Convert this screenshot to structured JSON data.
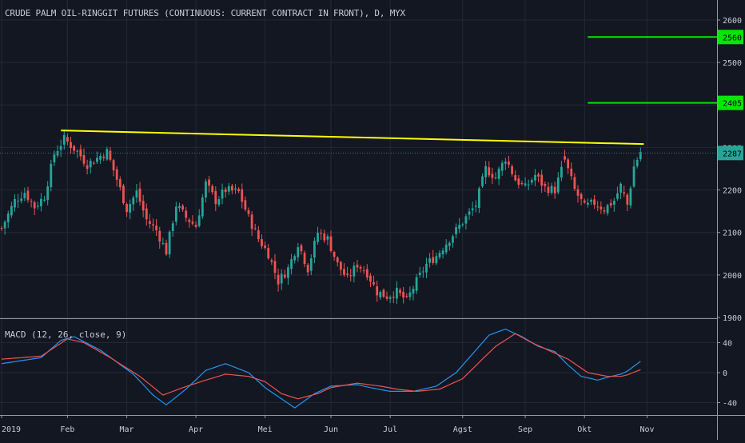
{
  "chart_data": [
    {
      "type": "candlestick",
      "title": "CRUDE PALM OIL-RINGGIT FUTURES (CONTINUOUS: CURRENT CONTRACT IN FRONT), D, MYX",
      "ylim": [
        1900,
        2600
      ],
      "y_ticks": [
        "1900",
        "2000",
        "2100",
        "2200",
        "2300",
        "2400",
        "2500",
        "2600"
      ],
      "x_ticks": [
        "2019",
        "Feb",
        "Mar",
        "Apr",
        "Mei",
        "Jun",
        "Jul",
        "Agst",
        "Sep",
        "Okt",
        "Nov"
      ],
      "x_tick_index": [
        0,
        20,
        38,
        59,
        80,
        100,
        118,
        140,
        159,
        177,
        196
      ],
      "price_labels": [
        {
          "value": 2560,
          "text": "2560",
          "color": "#00e600"
        },
        {
          "value": 2405,
          "text": "2405",
          "color": "#00e600"
        },
        {
          "value": 2287,
          "text": "2287",
          "color": "#26a69a"
        }
      ],
      "horizontal_lines": [
        {
          "value": 2560,
          "from_index": 178,
          "color": "#00e600"
        },
        {
          "value": 2405,
          "from_index": 178,
          "color": "#00e600"
        }
      ],
      "trend_line": {
        "from": {
          "index": 18,
          "value": 2340
        },
        "to": {
          "index": 195,
          "value": 2308
        },
        "color": "#ffff00"
      },
      "current_price_line": {
        "value": 2287
      },
      "up_color": "#26a69a",
      "down_color": "#ef5350",
      "close_anchors": [
        [
          0,
          2110
        ],
        [
          4,
          2175
        ],
        [
          7,
          2195
        ],
        [
          10,
          2160
        ],
        [
          13,
          2185
        ],
        [
          16,
          2285
        ],
        [
          19,
          2320
        ],
        [
          23,
          2290
        ],
        [
          26,
          2260
        ],
        [
          29,
          2275
        ],
        [
          32,
          2290
        ],
        [
          35,
          2225
        ],
        [
          38,
          2155
        ],
        [
          41,
          2195
        ],
        [
          44,
          2130
        ],
        [
          47,
          2105
        ],
        [
          50,
          2055
        ],
        [
          53,
          2165
        ],
        [
          56,
          2135
        ],
        [
          59,
          2115
        ],
        [
          62,
          2215
        ],
        [
          65,
          2175
        ],
        [
          68,
          2200
        ],
        [
          72,
          2195
        ],
        [
          75,
          2135
        ],
        [
          78,
          2085
        ],
        [
          81,
          2050
        ],
        [
          84,
          1985
        ],
        [
          87,
          2015
        ],
        [
          90,
          2075
        ],
        [
          93,
          2015
        ],
        [
          96,
          2100
        ],
        [
          99,
          2085
        ],
        [
          102,
          2025
        ],
        [
          105,
          1990
        ],
        [
          108,
          2025
        ],
        [
          111,
          2005
        ],
        [
          114,
          1960
        ],
        [
          117,
          1950
        ],
        [
          120,
          1960
        ],
        [
          123,
          1940
        ],
        [
          126,
          1985
        ],
        [
          129,
          2025
        ],
        [
          132,
          2045
        ],
        [
          135,
          2075
        ],
        [
          138,
          2105
        ],
        [
          141,
          2135
        ],
        [
          144,
          2165
        ],
        [
          147,
          2250
        ],
        [
          150,
          2230
        ],
        [
          153,
          2275
        ],
        [
          156,
          2225
        ],
        [
          159,
          2205
        ],
        [
          162,
          2235
        ],
        [
          165,
          2205
        ],
        [
          168,
          2200
        ],
        [
          171,
          2270
        ],
        [
          174,
          2200
        ],
        [
          177,
          2160
        ],
        [
          180,
          2170
        ],
        [
          183,
          2155
        ],
        [
          186,
          2175
        ],
        [
          188,
          2210
        ],
        [
          190,
          2165
        ],
        [
          192,
          2255
        ],
        [
          194,
          2290
        ]
      ],
      "gap_indices": [
        171,
        189
      ]
    },
    {
      "type": "line",
      "title": "MACD (12, 26, close, 9)",
      "ylim": [
        -57,
        61
      ],
      "y_ticks": [
        "40",
        "0",
        "-40"
      ],
      "series": [
        {
          "color": "#2196f3",
          "values": [
            [
              0,
              12
            ],
            [
              12,
              20
            ],
            [
              18,
              43
            ],
            [
              22,
              48
            ],
            [
              30,
              30
            ],
            [
              40,
              -2
            ],
            [
              46,
              -30
            ],
            [
              50,
              -43
            ],
            [
              56,
              -22
            ],
            [
              62,
              3
            ],
            [
              68,
              12
            ],
            [
              75,
              0
            ],
            [
              80,
              -20
            ],
            [
              85,
              -35
            ],
            [
              89,
              -47
            ],
            [
              95,
              -28
            ],
            [
              100,
              -18
            ],
            [
              108,
              -16
            ],
            [
              112,
              -20
            ],
            [
              118,
              -25
            ],
            [
              125,
              -25
            ],
            [
              132,
              -18
            ],
            [
              138,
              0
            ],
            [
              144,
              30
            ],
            [
              148,
              50
            ],
            [
              153,
              58
            ],
            [
              158,
              48
            ],
            [
              163,
              35
            ],
            [
              168,
              28
            ],
            [
              172,
              10
            ],
            [
              176,
              -5
            ],
            [
              181,
              -10
            ],
            [
              185,
              -5
            ],
            [
              188,
              -2
            ],
            [
              190,
              2
            ],
            [
              194,
              15
            ]
          ]
        },
        {
          "color": "#ef5350",
          "values": [
            [
              0,
              18
            ],
            [
              12,
              22
            ],
            [
              20,
              45
            ],
            [
              25,
              40
            ],
            [
              33,
              20
            ],
            [
              42,
              -5
            ],
            [
              49,
              -30
            ],
            [
              55,
              -20
            ],
            [
              62,
              -10
            ],
            [
              68,
              -2
            ],
            [
              75,
              -5
            ],
            [
              80,
              -12
            ],
            [
              85,
              -28
            ],
            [
              90,
              -35
            ],
            [
              96,
              -28
            ],
            [
              100,
              -20
            ],
            [
              108,
              -14
            ],
            [
              115,
              -18
            ],
            [
              120,
              -22
            ],
            [
              126,
              -25
            ],
            [
              133,
              -22
            ],
            [
              140,
              -8
            ],
            [
              146,
              18
            ],
            [
              150,
              35
            ],
            [
              156,
              52
            ],
            [
              161,
              40
            ],
            [
              166,
              30
            ],
            [
              172,
              18
            ],
            [
              178,
              0
            ],
            [
              184,
              -5
            ],
            [
              188,
              -5
            ],
            [
              190,
              -3
            ],
            [
              194,
              4
            ]
          ]
        }
      ]
    }
  ]
}
